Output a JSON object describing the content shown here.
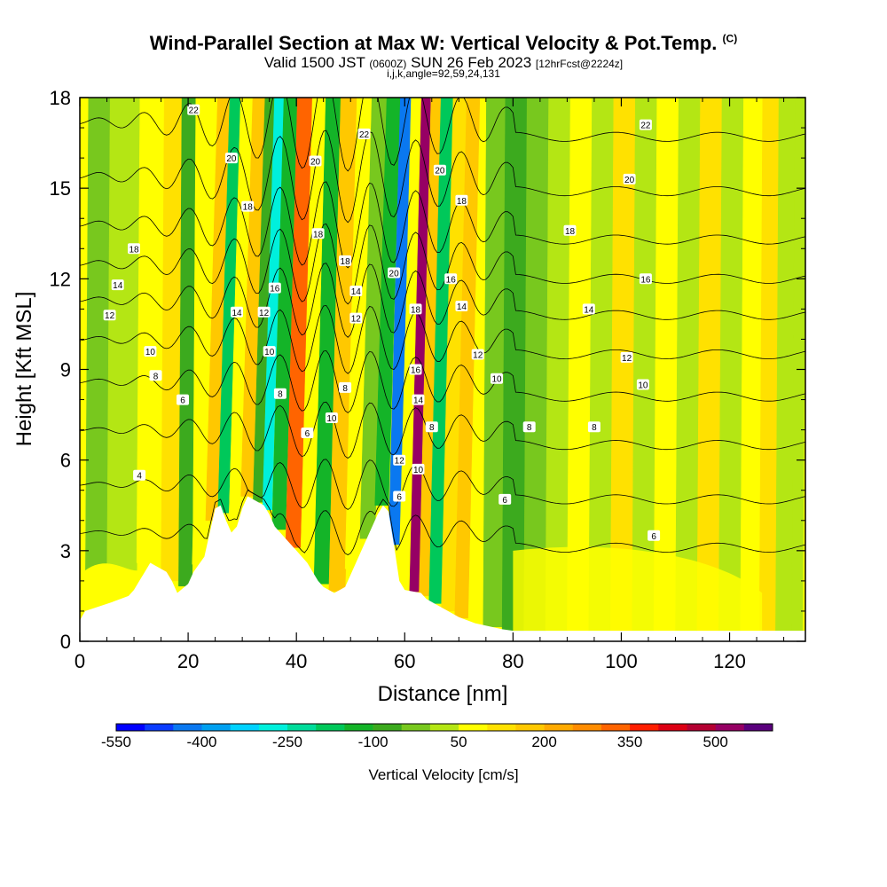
{
  "title": {
    "main": "Wind-Parallel Section at Max W: Vertical Velocity & Pot.Temp.",
    "copyright": "(C)"
  },
  "subtitle": {
    "valid": "Valid 1500 JST",
    "utc": "(0600Z)",
    "date": "SUN 26 Feb 2023",
    "fcst": "[12hrFcst@2224z]"
  },
  "params": "i,j,k,angle=92,59,24,131",
  "chart_data": {
    "type": "heatmap",
    "xlabel": "Distance [nm]",
    "ylabel": "Height [Kft MSL]",
    "xlim": [
      0,
      134
    ],
    "ylim": [
      0,
      18
    ],
    "x_ticks": [
      "0",
      "20",
      "40",
      "60",
      "80",
      "100",
      "120"
    ],
    "x_tick_values": [
      0,
      20,
      40,
      60,
      80,
      100,
      120
    ],
    "y_ticks": [
      "0",
      "3",
      "6",
      "9",
      "12",
      "15",
      "18"
    ],
    "y_tick_values": [
      0,
      3,
      6,
      9,
      12,
      15,
      18
    ],
    "colorbar": {
      "label": "Vertical Velocity [cm/s]",
      "tick_labels": [
        "-550",
        "-400",
        "-250",
        "-100",
        "50",
        "200",
        "350",
        "500"
      ],
      "tick_values": [
        -550,
        -400,
        -250,
        -100,
        50,
        200,
        350,
        500
      ],
      "levels": [
        -550,
        -500,
        -450,
        -400,
        -350,
        -300,
        -250,
        -200,
        -150,
        -100,
        -50,
        0,
        50,
        100,
        150,
        200,
        250,
        300,
        350,
        400,
        450,
        500,
        550
      ],
      "colors": [
        "#0000ff",
        "#0a3cff",
        "#0a78f0",
        "#00a0f0",
        "#00d2ff",
        "#00f0dc",
        "#00dc9b",
        "#00c85a",
        "#14b428",
        "#3caa1e",
        "#78c81e",
        "#b4e614",
        "#ffff00",
        "#ffe100",
        "#ffc800",
        "#ffaa00",
        "#ff8c00",
        "#ff6400",
        "#ff1e00",
        "#dc0014",
        "#b40032",
        "#960064",
        "#5a007d"
      ]
    },
    "terrain_kft": [
      [
        0,
        0.7
      ],
      [
        1,
        1.0
      ],
      [
        6,
        1.3
      ],
      [
        9,
        1.5
      ],
      [
        10,
        1.7
      ],
      [
        11,
        2.0
      ],
      [
        12,
        2.3
      ],
      [
        13,
        2.6
      ],
      [
        16,
        2.3
      ],
      [
        17,
        2.0
      ],
      [
        18,
        1.6
      ],
      [
        20,
        1.9
      ],
      [
        21,
        2.3
      ],
      [
        23,
        2.8
      ],
      [
        24,
        3.6
      ],
      [
        25,
        4.4
      ],
      [
        26,
        4.5
      ],
      [
        27,
        4.0
      ],
      [
        28,
        3.6
      ],
      [
        29,
        3.8
      ],
      [
        30,
        4.4
      ],
      [
        31,
        4.8
      ],
      [
        34,
        4.5
      ],
      [
        35,
        4.2
      ],
      [
        36,
        3.8
      ],
      [
        38,
        3.4
      ],
      [
        39,
        3.2
      ],
      [
        40,
        3.0
      ],
      [
        41,
        2.8
      ],
      [
        42,
        2.6
      ],
      [
        43,
        2.3
      ],
      [
        44,
        2.0
      ],
      [
        45,
        1.8
      ],
      [
        47,
        1.6
      ],
      [
        49,
        1.8
      ],
      [
        50,
        2.2
      ],
      [
        51,
        2.6
      ],
      [
        52,
        3.0
      ],
      [
        53,
        3.4
      ],
      [
        54,
        3.8
      ],
      [
        55,
        4.2
      ],
      [
        56,
        4.5
      ],
      [
        57,
        4.3
      ],
      [
        58,
        3.2
      ],
      [
        59,
        2.0
      ],
      [
        60,
        1.7
      ],
      [
        63,
        1.6
      ],
      [
        64,
        1.4
      ],
      [
        66,
        1.2
      ],
      [
        68,
        1.0
      ],
      [
        70,
        0.8
      ],
      [
        73,
        0.6
      ],
      [
        78,
        0.4
      ],
      [
        80,
        0.35
      ],
      [
        134,
        0.35
      ]
    ],
    "vertical_velocity_columns": [
      {
        "x": 2,
        "w": 0.0
      },
      {
        "x": 8,
        "w": 20
      },
      {
        "x": 13,
        "w": 60
      },
      {
        "x": 17,
        "w": 140
      },
      {
        "x": 19.5,
        "w": -80
      },
      {
        "x": 22,
        "w": 90
      },
      {
        "x": 24.5,
        "w": 180
      },
      {
        "x": 26.5,
        "w": -150
      },
      {
        "x": 28.5,
        "w": 60
      },
      {
        "x": 31,
        "w": 190
      },
      {
        "x": 33,
        "w": -80
      },
      {
        "x": 34.5,
        "w": -250
      },
      {
        "x": 36.5,
        "w": -120
      },
      {
        "x": 39.5,
        "w": 320
      },
      {
        "x": 42,
        "w": 90
      },
      {
        "x": 44.5,
        "w": -110
      },
      {
        "x": 47.5,
        "w": 180
      },
      {
        "x": 50.5,
        "w": 100
      },
      {
        "x": 53,
        "w": -30
      },
      {
        "x": 56,
        "w": -120
      },
      {
        "x": 58,
        "w": -420
      },
      {
        "x": 60,
        "w": 100
      },
      {
        "x": 61.8,
        "w": 520
      },
      {
        "x": 63.5,
        "w": 200
      },
      {
        "x": 65.5,
        "w": -180
      },
      {
        "x": 68,
        "w": 130
      },
      {
        "x": 70.5,
        "w": 200
      },
      {
        "x": 73,
        "w": 80
      },
      {
        "x": 76,
        "w": -40
      },
      {
        "x": 80,
        "w": -90
      },
      {
        "x": 84,
        "w": -10
      },
      {
        "x": 88,
        "w": 40
      },
      {
        "x": 92,
        "w": 80
      },
      {
        "x": 96,
        "w": 30
      },
      {
        "x": 100,
        "w": 110
      },
      {
        "x": 104,
        "w": 40
      },
      {
        "x": 108,
        "w": 100
      },
      {
        "x": 112,
        "w": 50
      },
      {
        "x": 116,
        "w": 110
      },
      {
        "x": 120,
        "w": 30
      },
      {
        "x": 124,
        "w": 60
      },
      {
        "x": 127,
        "w": 110
      },
      {
        "x": 130,
        "w": 40
      },
      {
        "x": 133,
        "w": 20
      }
    ],
    "theta_levels": [
      4,
      6,
      8,
      10,
      12,
      14,
      16,
      18,
      20,
      22
    ],
    "theta_labels": [
      {
        "text": "22",
        "x": 21,
        "y": 17.6
      },
      {
        "text": "20",
        "x": 28,
        "y": 16.0
      },
      {
        "text": "18",
        "x": 31,
        "y": 14.4
      },
      {
        "text": "18",
        "x": 10,
        "y": 13.0
      },
      {
        "text": "14",
        "x": 7,
        "y": 11.8
      },
      {
        "text": "12",
        "x": 5.5,
        "y": 10.8
      },
      {
        "text": "10",
        "x": 13,
        "y": 9.6
      },
      {
        "text": "8",
        "x": 14,
        "y": 8.8
      },
      {
        "text": "6",
        "x": 19,
        "y": 8.0
      },
      {
        "text": "4",
        "x": 11,
        "y": 5.5
      },
      {
        "text": "14",
        "x": 29,
        "y": 10.9
      },
      {
        "text": "12",
        "x": 34,
        "y": 10.9
      },
      {
        "text": "16",
        "x": 36,
        "y": 11.7
      },
      {
        "text": "10",
        "x": 35,
        "y": 9.6
      },
      {
        "text": "8",
        "x": 37,
        "y": 8.2
      },
      {
        "text": "6",
        "x": 42,
        "y": 6.9
      },
      {
        "text": "20",
        "x": 43.5,
        "y": 15.9
      },
      {
        "text": "18",
        "x": 44,
        "y": 13.5
      },
      {
        "text": "18",
        "x": 49,
        "y": 12.6
      },
      {
        "text": "14",
        "x": 51,
        "y": 11.6
      },
      {
        "text": "12",
        "x": 51,
        "y": 10.7
      },
      {
        "text": "8",
        "x": 49,
        "y": 8.4
      },
      {
        "text": "10",
        "x": 46.5,
        "y": 7.4
      },
      {
        "text": "22",
        "x": 52.5,
        "y": 16.8
      },
      {
        "text": "20",
        "x": 58,
        "y": 12.2
      },
      {
        "text": "18",
        "x": 62,
        "y": 11.0
      },
      {
        "text": "16",
        "x": 62,
        "y": 9.0
      },
      {
        "text": "14",
        "x": 62.5,
        "y": 8.0
      },
      {
        "text": "12",
        "x": 59,
        "y": 6.0
      },
      {
        "text": "10",
        "x": 62.5,
        "y": 5.7
      },
      {
        "text": "8",
        "x": 65,
        "y": 7.1
      },
      {
        "text": "6",
        "x": 59,
        "y": 4.8
      },
      {
        "text": "20",
        "x": 66.5,
        "y": 15.6
      },
      {
        "text": "18",
        "x": 70.5,
        "y": 14.6
      },
      {
        "text": "16",
        "x": 68.5,
        "y": 12.0
      },
      {
        "text": "14",
        "x": 70.5,
        "y": 11.1
      },
      {
        "text": "12",
        "x": 73.5,
        "y": 9.5
      },
      {
        "text": "10",
        "x": 77,
        "y": 8.7
      },
      {
        "text": "8",
        "x": 83,
        "y": 7.1
      },
      {
        "text": "6",
        "x": 78.5,
        "y": 4.7
      },
      {
        "text": "22",
        "x": 104.5,
        "y": 17.1
      },
      {
        "text": "20",
        "x": 101.5,
        "y": 15.3
      },
      {
        "text": "18",
        "x": 90.5,
        "y": 13.6
      },
      {
        "text": "16",
        "x": 104.5,
        "y": 12.0
      },
      {
        "text": "14",
        "x": 94,
        "y": 11.0
      },
      {
        "text": "12",
        "x": 101,
        "y": 9.4
      },
      {
        "text": "10",
        "x": 104,
        "y": 8.5
      },
      {
        "text": "8",
        "x": 95,
        "y": 7.1
      },
      {
        "text": "6",
        "x": 106,
        "y": 3.5
      }
    ]
  }
}
